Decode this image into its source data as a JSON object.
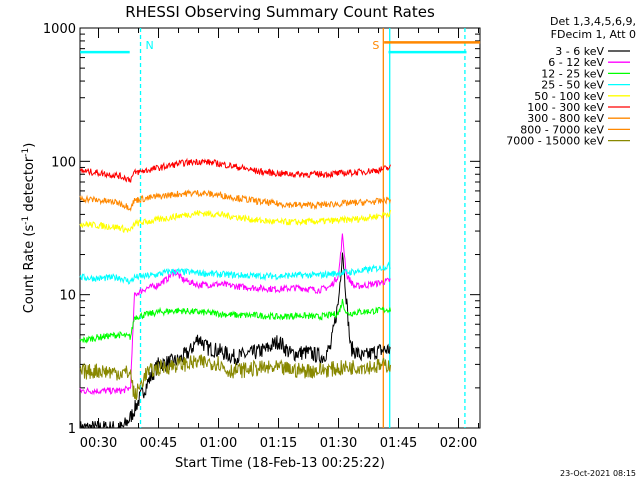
{
  "chart_data": {
    "type": "line",
    "title": "RHESSI Observing Summary Count Rates",
    "xlabel": "Start Time (18-Feb-13 00:25:22)",
    "ylabel_main": "Count Rate (s",
    "ylabel_sup1": "-1",
    "ylabel_mid": " detector",
    "ylabel_sup2": "-1",
    "ylabel_end": ")",
    "y_scale": "log",
    "ylim": [
      1,
      1000
    ],
    "xlim_minutes": [
      25.37,
      125.37
    ],
    "x_ticks": [
      {
        "minute": 30,
        "label": "00:30"
      },
      {
        "minute": 45,
        "label": "00:45"
      },
      {
        "minute": 60,
        "label": "01:00"
      },
      {
        "minute": 75,
        "label": "01:15"
      },
      {
        "minute": 90,
        "label": "01:30"
      },
      {
        "minute": 105,
        "label": "01:45"
      },
      {
        "minute": 120,
        "label": "02:00"
      }
    ],
    "y_ticks": [
      {
        "value": 1,
        "label": "1"
      },
      {
        "value": 10,
        "label": "10"
      },
      {
        "value": 100,
        "label": "100"
      },
      {
        "value": 1000,
        "label": "1000"
      }
    ],
    "legend_header": [
      "Det 1,3,4,5,6,9,",
      "FDecim 1, Att 0"
    ],
    "series": [
      {
        "name": "3 - 6 keV",
        "color": "#000000",
        "points": [
          [
            25.4,
            1
          ],
          [
            36,
            1
          ],
          [
            38,
            1.2
          ],
          [
            40,
            1.6
          ],
          [
            43,
            2.4
          ],
          [
            45,
            3.0
          ],
          [
            50,
            3.2
          ],
          [
            53,
            3.8
          ],
          [
            55,
            4.8
          ],
          [
            57,
            4.0
          ],
          [
            60,
            3.8
          ],
          [
            64,
            3.4
          ],
          [
            68,
            3.6
          ],
          [
            72,
            3.9
          ],
          [
            75,
            4.5
          ],
          [
            78,
            3.6
          ],
          [
            82,
            3.7
          ],
          [
            86,
            3.4
          ],
          [
            88,
            4.0
          ],
          [
            90,
            9
          ],
          [
            91,
            22
          ],
          [
            92,
            9
          ],
          [
            93,
            4.0
          ],
          [
            96,
            3.4
          ],
          [
            100,
            3.8
          ],
          [
            103,
            3.9
          ]
        ]
      },
      {
        "name": "6 - 12 keV",
        "color": "#ff00ff",
        "points": [
          [
            25.4,
            1.9
          ],
          [
            30,
            1.9
          ],
          [
            36,
            1.9
          ],
          [
            38,
            2.0
          ],
          [
            39,
            10
          ],
          [
            42,
            11.2
          ],
          [
            44,
            11.5
          ],
          [
            47,
            13
          ],
          [
            49,
            15
          ],
          [
            51,
            13
          ],
          [
            55,
            11.8
          ],
          [
            60,
            12
          ],
          [
            65,
            11.5
          ],
          [
            70,
            11.2
          ],
          [
            75,
            11
          ],
          [
            80,
            11.3
          ],
          [
            85,
            10.8
          ],
          [
            88,
            11.5
          ],
          [
            90,
            14
          ],
          [
            91,
            28
          ],
          [
            92,
            14
          ],
          [
            94,
            11.5
          ],
          [
            97,
            11.8
          ],
          [
            100,
            12.2
          ],
          [
            103,
            12.8
          ]
        ]
      },
      {
        "name": "12 - 25 keV",
        "color": "#00ff00",
        "points": [
          [
            25.4,
            4.5
          ],
          [
            30,
            4.8
          ],
          [
            35,
            5.0
          ],
          [
            38,
            4.8
          ],
          [
            39,
            6.8
          ],
          [
            45,
            7.4
          ],
          [
            50,
            7.6
          ],
          [
            55,
            7.4
          ],
          [
            60,
            7.2
          ],
          [
            65,
            7.0
          ],
          [
            70,
            7.0
          ],
          [
            75,
            6.8
          ],
          [
            80,
            7.0
          ],
          [
            85,
            6.8
          ],
          [
            90,
            7.2
          ],
          [
            91,
            9
          ],
          [
            92,
            7.2
          ],
          [
            95,
            7.4
          ],
          [
            100,
            7.6
          ],
          [
            103,
            7.8
          ]
        ]
      },
      {
        "name": "25 - 50 keV",
        "color": "#00ffff",
        "points": [
          [
            25.4,
            13.5
          ],
          [
            30,
            13.2
          ],
          [
            35,
            13.5
          ],
          [
            38,
            12.5
          ],
          [
            39,
            13.5
          ],
          [
            44,
            14
          ],
          [
            48,
            15
          ],
          [
            52,
            14.8
          ],
          [
            56,
            14.5
          ],
          [
            60,
            14.2
          ],
          [
            65,
            14
          ],
          [
            70,
            13.8
          ],
          [
            75,
            13.8
          ],
          [
            80,
            14
          ],
          [
            85,
            14
          ],
          [
            90,
            14.5
          ],
          [
            95,
            15
          ],
          [
            100,
            15.8
          ],
          [
            103,
            16.5
          ]
        ]
      },
      {
        "name": "50 - 100 keV",
        "color": "#ffff00",
        "points": [
          [
            25.4,
            34
          ],
          [
            30,
            33
          ],
          [
            35,
            32
          ],
          [
            38,
            30
          ],
          [
            39,
            34
          ],
          [
            44,
            36
          ],
          [
            50,
            39
          ],
          [
            55,
            41
          ],
          [
            60,
            40
          ],
          [
            65,
            38
          ],
          [
            70,
            36
          ],
          [
            75,
            35
          ],
          [
            80,
            35
          ],
          [
            85,
            35.5
          ],
          [
            90,
            36
          ],
          [
            95,
            37
          ],
          [
            100,
            39
          ],
          [
            103,
            41
          ]
        ]
      },
      {
        "name": "100 - 300 keV",
        "color": "#ff0000",
        "points": [
          [
            25.4,
            85
          ],
          [
            30,
            82
          ],
          [
            35,
            78
          ],
          [
            38,
            73
          ],
          [
            39,
            82
          ],
          [
            44,
            88
          ],
          [
            50,
            96
          ],
          [
            55,
            100
          ],
          [
            58,
            98
          ],
          [
            62,
            94
          ],
          [
            66,
            89
          ],
          [
            70,
            84
          ],
          [
            75,
            81
          ],
          [
            80,
            80
          ],
          [
            85,
            80
          ],
          [
            90,
            81
          ],
          [
            95,
            83
          ],
          [
            100,
            86
          ],
          [
            103,
            90
          ]
        ]
      },
      {
        "name": "300 - 800 keV",
        "color": "#ff8800",
        "points": [
          [
            25.4,
            53
          ],
          [
            30,
            51
          ],
          [
            35,
            49
          ],
          [
            38,
            45
          ],
          [
            39,
            51
          ],
          [
            44,
            54
          ],
          [
            50,
            57
          ],
          [
            55,
            58
          ],
          [
            60,
            56
          ],
          [
            65,
            53
          ],
          [
            70,
            50
          ],
          [
            75,
            48
          ],
          [
            80,
            47
          ],
          [
            85,
            47
          ],
          [
            90,
            48
          ],
          [
            95,
            49
          ],
          [
            100,
            50
          ],
          [
            103,
            52
          ]
        ]
      },
      {
        "name": "800 - 7000 keV",
        "color": "#ff8800",
        "points": [
          [
            101.4,
            780
          ],
          [
            125.4,
            780
          ]
        ]
      },
      {
        "name": "7000 - 15000 keV",
        "color": "#888800",
        "points": [
          [
            25.4,
            2.6
          ],
          [
            30,
            2.7
          ],
          [
            35,
            2.6
          ],
          [
            38,
            2.6
          ],
          [
            39,
            1.7
          ],
          [
            42,
            2.6
          ],
          [
            45,
            2.8
          ],
          [
            50,
            3.0
          ],
          [
            55,
            3.1
          ],
          [
            60,
            3.1
          ],
          [
            62,
            2.7
          ],
          [
            65,
            2.7
          ],
          [
            70,
            2.8
          ],
          [
            75,
            2.8
          ],
          [
            80,
            2.7
          ],
          [
            85,
            2.7
          ],
          [
            90,
            2.8
          ],
          [
            95,
            2.9
          ],
          [
            100,
            2.9
          ],
          [
            103,
            3.0
          ]
        ]
      }
    ],
    "cyan_segments": [
      {
        "color": "#00ffff",
        "points": [
          [
            25.4,
            660
          ],
          [
            37.8,
            660
          ]
        ]
      },
      {
        "color": "#00ffff",
        "points": [
          [
            102.5,
            660
          ],
          [
            122,
            660
          ]
        ]
      }
    ],
    "markers": [
      {
        "label": "N",
        "minute": 40.5,
        "color": "#00ffff",
        "style": "dashed",
        "label_color": "#00ffff"
      },
      {
        "label": "S",
        "minute": 101.2,
        "color": "#ff8800",
        "style": "solid",
        "label_color": "#ff8800"
      },
      {
        "label": "",
        "minute": 102.8,
        "color": "#00ffff",
        "style": "solid",
        "label_color": "#00ffff"
      },
      {
        "label": "",
        "minute": 121.6,
        "color": "#00ffff",
        "style": "dashed",
        "label_color": "#00ffff"
      }
    ],
    "legend_placement": "right",
    "grid": false
  },
  "footer": {
    "timestamp": "23-Oct-2021 08:15"
  }
}
